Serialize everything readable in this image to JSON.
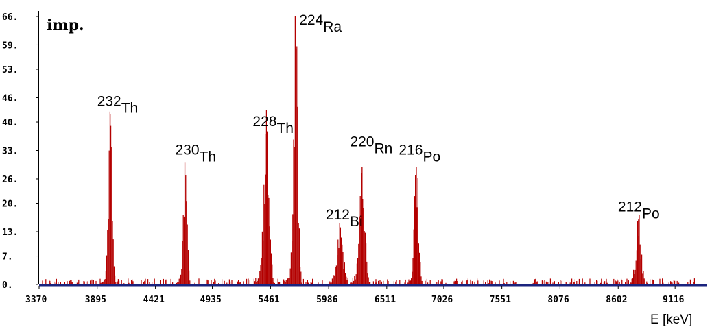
{
  "chart_data": {
    "type": "bar",
    "title": "",
    "ylabel": "imp.",
    "xlabel": "E [keV]",
    "xlim": [
      3370,
      9400
    ],
    "ylim": [
      0,
      66
    ],
    "y_ticks": [
      "0.",
      "7.",
      "13.",
      "20.",
      "26.",
      "33.",
      "40.",
      "46.",
      "53.",
      "59.",
      "66."
    ],
    "y_tick_values": [
      0,
      7,
      13,
      20,
      26,
      33,
      40,
      46,
      53,
      59,
      66
    ],
    "x_ticks": [
      "3370",
      "3895",
      "4421",
      "4935",
      "5461",
      "5986",
      "6511",
      "7026",
      "7551",
      "8076",
      "8602",
      "9116"
    ],
    "x_tick_values": [
      3370,
      3895,
      4421,
      4935,
      5461,
      5986,
      6511,
      7026,
      7551,
      8076,
      8602,
      9116
    ],
    "bar_color": "#b30000",
    "axis_color": "#1a237e",
    "background_noise_max": 1.5,
    "peaks": [
      {
        "mass": "232",
        "element": "Th",
        "energy": 4012,
        "height": 42,
        "sigma": 16,
        "label_energy": 3895,
        "label_value": 44
      },
      {
        "mass": "230",
        "element": "Th",
        "energy": 4687,
        "height": 30,
        "sigma": 16,
        "label_energy": 4600,
        "label_value": 32
      },
      {
        "mass": "228",
        "element": "Th",
        "energy": 5423,
        "height": 37,
        "sigma": 24,
        "label_energy": 5300,
        "label_value": 39
      },
      {
        "mass": "224",
        "element": "Ra",
        "energy": 5685,
        "height": 66,
        "sigma": 18,
        "label_energy": 5720,
        "label_value": 64
      },
      {
        "mass": "212",
        "element": "Bi",
        "energy": 6090,
        "height": 14,
        "sigma": 24,
        "label_energy": 5960,
        "label_value": 16
      },
      {
        "mass": "220",
        "element": "Rn",
        "energy": 6288,
        "height": 29,
        "sigma": 22,
        "label_energy": 6180,
        "label_value": 34
      },
      {
        "mass": "216",
        "element": "Po",
        "energy": 6778,
        "height": 29,
        "sigma": 18,
        "label_energy": 6620,
        "label_value": 32
      },
      {
        "mass": "212",
        "element": "Po",
        "energy": 8785,
        "height": 16,
        "sigma": 22,
        "label_energy": 8600,
        "label_value": 18
      }
    ]
  }
}
